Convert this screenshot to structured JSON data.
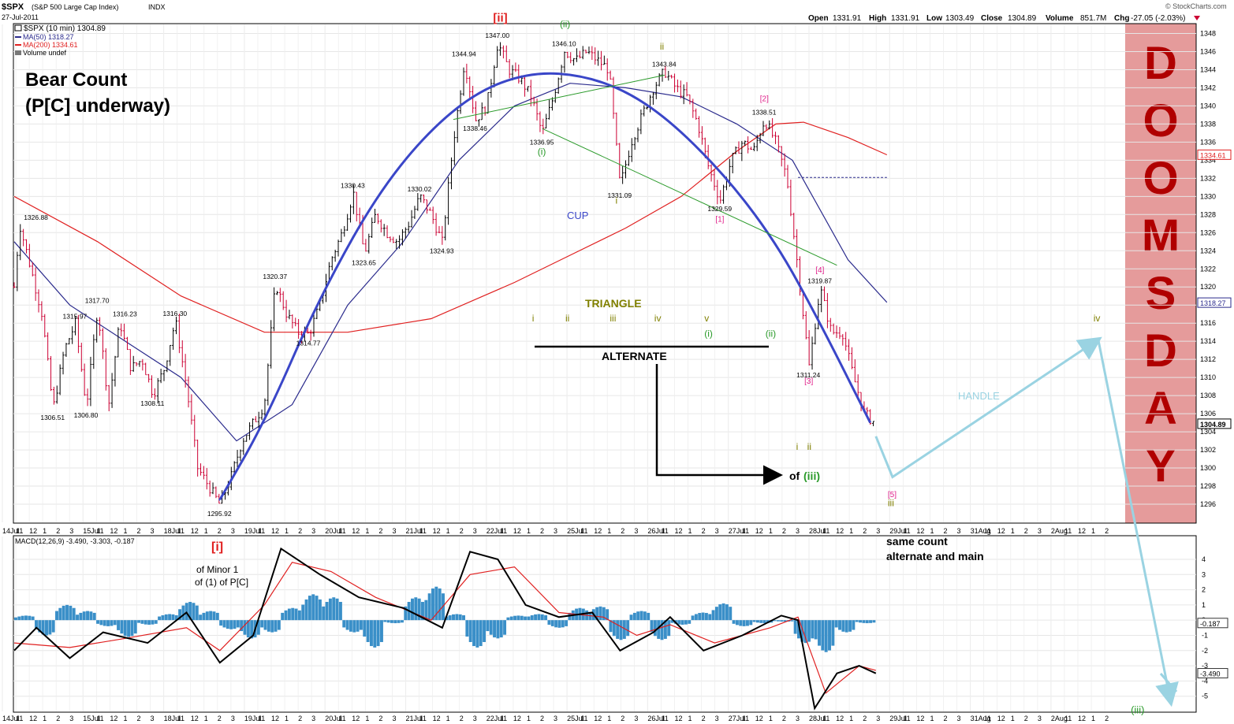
{
  "header": {
    "symbol": "$SPX",
    "name": "(S&P 500 Large Cap Index)",
    "exchange": "INDX",
    "date": "27-Jul-2011",
    "brand": "© StockCharts.com",
    "open_label": "Open",
    "open": "1331.91",
    "high_label": "High",
    "high": "1331.91",
    "low_label": "Low",
    "low": "1303.49",
    "close_label": "Close",
    "close": "1304.89",
    "volume_label": "Volume",
    "volume": "851.7M",
    "chg_label": "Chg",
    "chg": "-27.05 (-2.03%)"
  },
  "legend": {
    "price": "$SPX (10 min) 1304.89",
    "ma50": "MA(50) 1318.27",
    "ma200": "MA(200) 1334.61",
    "volume": "Volume undef"
  },
  "annotations": {
    "bear_title": "Bear Count",
    "bear_sub": "(P[C] underway)",
    "cup": "CUP",
    "handle": "HANDLE",
    "triangle": "TRIANGLE",
    "alternate": "ALTERNATE",
    "doomsday": [
      "D",
      "O",
      "O",
      "M",
      "S",
      "D",
      "A",
      "Y"
    ],
    "same_count_1": "same count",
    "same_count_2": "alternate and main",
    "wave_i": "[i]",
    "of_minor": "of Minor 1",
    "of_pc": "of (1) of P[C]",
    "wave_ii_big": "[ii]",
    "of_iii_of": "of",
    "of_iii_wave": "(iii)"
  },
  "colors": {
    "up": "#000000",
    "down": "#cc0033",
    "ma50": "#2a2a8c",
    "ma200": "#e02020",
    "cup": "#3a46c8",
    "handle": "#9ad3e2",
    "green": "#2a9a2a",
    "olive": "#808000",
    "pink": "#e0208a",
    "macd_hist": "#3a8fc8",
    "doom_bg": "#e08a8a",
    "doom_text": "#b00000"
  },
  "chart_data": [
    {
      "type": "line",
      "title": "$SPX (S&P 500 Large Cap Index) 10 min",
      "x_ticks": [
        "14Jul",
        "11",
        "12",
        "1",
        "2",
        "3",
        "15Jul",
        "11",
        "12",
        "1",
        "2",
        "3",
        "18Jul",
        "11",
        "12",
        "1",
        "2",
        "3",
        "19Jul",
        "11",
        "12",
        "1",
        "2",
        "3",
        "20Jul",
        "11",
        "12",
        "1",
        "2",
        "3",
        "21Jul",
        "11",
        "12",
        "1",
        "2",
        "3",
        "22Jul",
        "11",
        "12",
        "1",
        "2",
        "3",
        "25Jul",
        "11",
        "12",
        "1",
        "2",
        "3",
        "26Jul",
        "11",
        "12",
        "1",
        "2",
        "3",
        "27Jul",
        "11",
        "12",
        "1",
        "2",
        "3",
        "28Jul",
        "11",
        "12",
        "1",
        "2",
        "3",
        "29Jul",
        "11",
        "12",
        "1",
        "2",
        "3",
        "31Aug",
        "11",
        "12",
        "1",
        "2",
        "3",
        "2Aug",
        "11",
        "12",
        "1",
        "2"
      ],
      "ylim": [
        1294,
        1349
      ],
      "y_ticks": [
        1296,
        1298,
        1300,
        1302,
        1304,
        1306,
        1308,
        1310,
        1312,
        1314,
        1316,
        1318,
        1320,
        1322,
        1324,
        1326,
        1328,
        1330,
        1332,
        1334,
        1336,
        1338,
        1340,
        1342,
        1344,
        1346,
        1348
      ],
      "y_tick_labels": [
        "1296",
        "1298",
        "1300",
        "1302",
        "1304",
        "1306",
        "1308",
        "1310",
        "1312",
        "1314",
        "1316",
        "1318",
        "1320",
        "1322",
        "1324",
        "1326",
        "1328",
        "1330",
        "1332",
        "1334",
        "1336",
        "1338",
        "1340",
        "1342",
        "1344",
        "1346",
        "1348"
      ],
      "last_labels": {
        "ma200": "1334.61",
        "ma50": "1318.27",
        "close": "1304.89"
      },
      "price_path": [
        [
          0,
          1320
        ],
        [
          1,
          1326.9
        ],
        [
          3,
          1322
        ],
        [
          5,
          1317
        ],
        [
          7,
          1306.5
        ],
        [
          9,
          1313
        ],
        [
          11,
          1315.97
        ],
        [
          13,
          1306.8
        ],
        [
          15,
          1317.7
        ],
        [
          17,
          1307
        ],
        [
          19,
          1316.23
        ],
        [
          21,
          1311
        ],
        [
          23,
          1312
        ],
        [
          25,
          1308.11
        ],
        [
          27,
          1311
        ],
        [
          29,
          1316.3
        ],
        [
          31,
          1309
        ],
        [
          33,
          1300
        ],
        [
          35,
          1298
        ],
        [
          37,
          1295.92
        ],
        [
          39,
          1299
        ],
        [
          41,
          1303
        ],
        [
          43,
          1305
        ],
        [
          45,
          1307
        ],
        [
          47,
          1320.37
        ],
        [
          49,
          1317
        ],
        [
          51,
          1315
        ],
        [
          53,
          1314.77
        ],
        [
          55,
          1318
        ],
        [
          57,
          1323
        ],
        [
          59,
          1326
        ],
        [
          61,
          1330.43
        ],
        [
          63,
          1323.65
        ],
        [
          65,
          1328
        ],
        [
          67,
          1326
        ],
        [
          69,
          1325
        ],
        [
          71,
          1327
        ],
        [
          73,
          1330.02
        ],
        [
          75,
          1328
        ],
        [
          77,
          1324.93
        ],
        [
          79,
          1336
        ],
        [
          81,
          1344.94
        ],
        [
          83,
          1338.46
        ],
        [
          85,
          1340
        ],
        [
          87,
          1347
        ],
        [
          89,
          1344
        ],
        [
          91,
          1343
        ],
        [
          93,
          1341
        ],
        [
          95,
          1336.95
        ],
        [
          97,
          1341
        ],
        [
          99,
          1346.1
        ],
        [
          101,
          1345
        ],
        [
          103,
          1346
        ],
        [
          105,
          1345
        ],
        [
          107,
          1344
        ],
        [
          109,
          1331.09
        ],
        [
          111,
          1336
        ],
        [
          113,
          1339
        ],
        [
          115,
          1342
        ],
        [
          117,
          1343.84
        ],
        [
          119,
          1342
        ],
        [
          121,
          1341
        ],
        [
          123,
          1338
        ],
        [
          125,
          1333
        ],
        [
          127,
          1329.59
        ],
        [
          129,
          1334
        ],
        [
          131,
          1336
        ],
        [
          133,
          1335
        ],
        [
          135,
          1338.51
        ],
        [
          137,
          1336
        ],
        [
          139,
          1332
        ],
        [
          141,
          1322
        ],
        [
          143,
          1311.24
        ],
        [
          145,
          1319.87
        ],
        [
          147,
          1315
        ],
        [
          149,
          1315
        ],
        [
          151,
          1310
        ],
        [
          153,
          1306
        ],
        [
          155,
          1304.89
        ]
      ],
      "ma50_path": [
        [
          0,
          1325
        ],
        [
          10,
          1318
        ],
        [
          20,
          1314
        ],
        [
          30,
          1310
        ],
        [
          40,
          1303
        ],
        [
          50,
          1307
        ],
        [
          60,
          1318
        ],
        [
          70,
          1325
        ],
        [
          80,
          1334
        ],
        [
          90,
          1340
        ],
        [
          100,
          1342.5
        ],
        [
          110,
          1342
        ],
        [
          120,
          1341
        ],
        [
          130,
          1338
        ],
        [
          140,
          1334
        ],
        [
          150,
          1323
        ],
        [
          157,
          1318.3
        ]
      ],
      "ma200_path": [
        [
          0,
          1330
        ],
        [
          15,
          1325
        ],
        [
          30,
          1319
        ],
        [
          45,
          1315
        ],
        [
          60,
          1315
        ],
        [
          75,
          1316.5
        ],
        [
          90,
          1320.5
        ],
        [
          100,
          1323.5
        ],
        [
          110,
          1326.5
        ],
        [
          120,
          1330
        ],
        [
          130,
          1335
        ],
        [
          137,
          1338
        ],
        [
          142,
          1338.2
        ],
        [
          150,
          1336.5
        ],
        [
          157,
          1334.6
        ]
      ],
      "cup_path": [
        [
          37,
          1296.5
        ],
        [
          45,
          1305
        ],
        [
          55,
          1319
        ],
        [
          67,
          1332
        ],
        [
          80,
          1340.5
        ],
        [
          92,
          1343.8
        ],
        [
          104,
          1343.3
        ],
        [
          115,
          1340
        ],
        [
          127,
          1333
        ],
        [
          137,
          1325
        ],
        [
          145,
          1316
        ],
        [
          154,
          1305
        ]
      ],
      "handle_path": [
        [
          155,
          1303.5
        ],
        [
          158,
          1299
        ],
        [
          195,
          1314.2
        ],
        [
          203,
          1295
        ]
      ],
      "triangle_lines": [
        [
          [
            79,
            1338.5
          ],
          [
            117,
            1343.4
          ]
        ],
        [
          [
            95,
            1337.5
          ],
          [
            148,
            1322.4
          ]
        ]
      ],
      "dashed_level": {
        "from": 141,
        "to": 157,
        "value": 1332.1
      },
      "value_labels": [
        {
          "x": 4,
          "y": 1326.88,
          "text": "1326.88"
        },
        {
          "x": 11,
          "y": 1315.97,
          "text": "1315.97"
        },
        {
          "x": 15,
          "y": 1317.7,
          "text": "1317.70"
        },
        {
          "x": 20,
          "y": 1316.23,
          "text": "1316.23"
        },
        {
          "x": 29,
          "y": 1316.3,
          "text": "1316.30"
        },
        {
          "x": 7,
          "y": 1306.51,
          "text": "1306.51"
        },
        {
          "x": 13,
          "y": 1306.8,
          "text": "1306.80"
        },
        {
          "x": 25,
          "y": 1308.11,
          "text": "1308.11"
        },
        {
          "x": 37,
          "y": 1295.92,
          "text": "1295.92"
        },
        {
          "x": 47,
          "y": 1320.37,
          "text": "1320.37"
        },
        {
          "x": 53,
          "y": 1314.77,
          "text": "1314.77"
        },
        {
          "x": 61,
          "y": 1330.43,
          "text": "1330.43"
        },
        {
          "x": 63,
          "y": 1323.65,
          "text": "1323.65"
        },
        {
          "x": 73,
          "y": 1330.02,
          "text": "1330.02"
        },
        {
          "x": 77,
          "y": 1324.93,
          "text": "1324.93"
        },
        {
          "x": 81,
          "y": 1344.94,
          "text": "1344.94"
        },
        {
          "x": 83,
          "y": 1338.46,
          "text": "1338.46"
        },
        {
          "x": 87,
          "y": 1347.0,
          "text": "1347.00"
        },
        {
          "x": 95,
          "y": 1336.95,
          "text": "1336.95"
        },
        {
          "x": 99,
          "y": 1346.1,
          "text": "1346.10"
        },
        {
          "x": 109,
          "y": 1331.09,
          "text": "1331.09"
        },
        {
          "x": 117,
          "y": 1343.84,
          "text": "1343.84"
        },
        {
          "x": 127,
          "y": 1329.59,
          "text": "1329.59"
        },
        {
          "x": 135,
          "y": 1338.51,
          "text": "1338.51"
        },
        {
          "x": 143,
          "y": 1311.24,
          "text": "1311.24"
        },
        {
          "x": 145,
          "y": 1319.87,
          "text": "1319.87"
        }
      ],
      "wave_labels": [
        {
          "x": 87,
          "y": 1349.3,
          "text": "[ii]",
          "color": "red"
        },
        {
          "x": 99,
          "y": 1348.7,
          "text": "(ii)",
          "color": "green"
        },
        {
          "x": 95,
          "y": 1334.6,
          "text": "(i)",
          "color": "green"
        },
        {
          "x": 117,
          "y": 1346.2,
          "text": "ii",
          "color": "olive"
        },
        {
          "x": 109,
          "y": 1329.2,
          "text": "i",
          "color": "olive"
        },
        {
          "x": 127,
          "y": 1327.2,
          "text": "[1]",
          "color": "pink"
        },
        {
          "x": 135,
          "y": 1340.5,
          "text": "[2]",
          "color": "pink"
        },
        {
          "x": 143,
          "y": 1309.3,
          "text": "[3]",
          "color": "pink"
        },
        {
          "x": 145,
          "y": 1321.6,
          "text": "[4]",
          "color": "pink"
        },
        {
          "x": 158,
          "y": 1296.8,
          "text": "[5]",
          "color": "pink"
        },
        {
          "x": 158,
          "y": 1295.8,
          "text": "iii",
          "color": "olive"
        },
        {
          "x": 94,
          "y": 1316.2,
          "text": "i",
          "color": "olive"
        },
        {
          "x": 100,
          "y": 1316.2,
          "text": "ii",
          "color": "olive"
        },
        {
          "x": 108,
          "y": 1316.2,
          "text": "iii",
          "color": "olive"
        },
        {
          "x": 116,
          "y": 1316.2,
          "text": "iv",
          "color": "olive"
        },
        {
          "x": 125,
          "y": 1316.2,
          "text": "v",
          "color": "olive"
        },
        {
          "x": 125,
          "y": 1314.5,
          "text": "(i)",
          "color": "green"
        },
        {
          "x": 136,
          "y": 1314.5,
          "text": "(ii)",
          "color": "green"
        },
        {
          "x": 141.5,
          "y": 1302,
          "text": "i",
          "color": "olive"
        },
        {
          "x": 143.5,
          "y": 1302,
          "text": "ii",
          "color": "olive"
        },
        {
          "x": 195,
          "y": 1316.2,
          "text": "iv",
          "color": "olive"
        }
      ]
    },
    {
      "type": "line",
      "title": "MACD(12,26,9)",
      "legend": "MACD(12,26,9) -3.490, -3.303, -0.187",
      "macd_value": "-3.490",
      "signal_value": "-3.303",
      "hist_value": "-0.187",
      "ylim": [
        -6,
        5.5
      ],
      "y_ticks": [
        -5,
        -4,
        -3,
        -2,
        -1,
        0,
        1,
        2,
        3,
        4
      ],
      "y_tick_labels": [
        "-5",
        "-4",
        "-3",
        "-2",
        "-1",
        "0",
        "1",
        "2",
        "3",
        "4"
      ],
      "last_labels": {
        "hist": "-0.187",
        "macd": "-3.490"
      },
      "macd_path": [
        [
          0,
          -2
        ],
        [
          4,
          -0.5
        ],
        [
          10,
          -2.5
        ],
        [
          16,
          -0.8
        ],
        [
          24,
          -1.5
        ],
        [
          31,
          0.5
        ],
        [
          37,
          -2.8
        ],
        [
          43,
          -1
        ],
        [
          48,
          4.7
        ],
        [
          55,
          3
        ],
        [
          62,
          1.5
        ],
        [
          70,
          0.8
        ],
        [
          77,
          -0.5
        ],
        [
          82,
          4.5
        ],
        [
          87,
          4
        ],
        [
          92,
          1
        ],
        [
          98,
          0.2
        ],
        [
          104,
          0.5
        ],
        [
          109,
          -2
        ],
        [
          115,
          -0.8
        ],
        [
          118,
          0.2
        ],
        [
          124,
          -2
        ],
        [
          131,
          -1
        ],
        [
          138,
          0.3
        ],
        [
          141,
          0
        ],
        [
          144,
          -5.8
        ],
        [
          148,
          -3.5
        ],
        [
          152,
          -3
        ],
        [
          155,
          -3.5
        ]
      ],
      "signal_path": [
        [
          0,
          -1.5
        ],
        [
          10,
          -1.8
        ],
        [
          20,
          -1.2
        ],
        [
          31,
          -0.5
        ],
        [
          37,
          -2
        ],
        [
          45,
          1
        ],
        [
          50,
          3.8
        ],
        [
          57,
          3.2
        ],
        [
          65,
          1.5
        ],
        [
          75,
          0
        ],
        [
          82,
          3
        ],
        [
          90,
          3.5
        ],
        [
          98,
          0.5
        ],
        [
          106,
          0.2
        ],
        [
          112,
          -1
        ],
        [
          118,
          -0.3
        ],
        [
          126,
          -1.5
        ],
        [
          136,
          -0.5
        ],
        [
          141,
          0.2
        ],
        [
          146,
          -4.8
        ],
        [
          152,
          -3
        ],
        [
          155,
          -3.3
        ]
      ],
      "hist": [
        0.3,
        -1,
        1,
        0.6,
        -0.4,
        -1.1,
        -0.3,
        0.4,
        1.2,
        0.6,
        -0.6,
        -1.2,
        -0.8,
        0.8,
        1.7,
        1.5,
        -0.8,
        -1.8,
        -0.2,
        1.5,
        2.2,
        0.4,
        -1.8,
        -1.2,
        0.3,
        0.4,
        -0.5,
        0.8,
        0.9,
        -1.3,
        0.6,
        -1.3,
        -0.3,
        0.5,
        1.1,
        -0.4,
        -0.2,
        -0.1,
        -1.5,
        -2.1,
        -0.8,
        -0.2
      ],
      "wave_labels": [
        {
          "x": 202,
          "y": -5.5,
          "text": "(iii)",
          "color": "green"
        }
      ]
    }
  ]
}
